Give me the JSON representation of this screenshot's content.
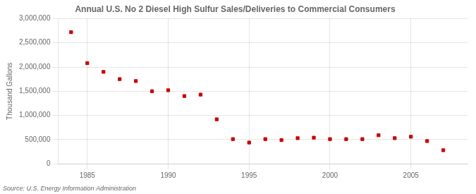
{
  "chart_data": {
    "type": "scatter",
    "title": "Annual U.S. No 2 Diesel High Sulfur Sales/Deliveries to Commercial Consumers",
    "y_label": "Thousand Gallons",
    "annotations": [
      "Source: U.S. Energy Information Administration"
    ],
    "x": [
      1984,
      1985,
      1986,
      1987,
      1988,
      1989,
      1990,
      1991,
      1992,
      1993,
      1994,
      1995,
      1996,
      1997,
      1998,
      1999,
      2000,
      2001,
      2002,
      2003,
      2004,
      2005,
      2006,
      2007
    ],
    "values": [
      2720000,
      2080000,
      1900000,
      1750000,
      1710000,
      1500000,
      1520000,
      1400000,
      1430000,
      920000,
      510000,
      440000,
      510000,
      490000,
      530000,
      540000,
      510000,
      510000,
      510000,
      590000,
      530000,
      560000,
      470000,
      280000
    ],
    "color": "#cc0000",
    "marker": "square",
    "xlim": [
      1983.2,
      2008.5
    ],
    "xticks": [
      1985,
      1990,
      1995,
      2000,
      2005
    ],
    "ylim": [
      0,
      3000000
    ],
    "yticks": [
      0,
      {
        "value": 500000,
        "label": "500,000"
      },
      {
        "value": 1000000,
        "label": "1,000,000"
      },
      {
        "value": 1500000,
        "label": "1,500,000"
      },
      {
        "value": 2000000,
        "label": "2,000,000"
      },
      {
        "value": 2500000,
        "label": "2,500,000"
      },
      {
        "value": 3000000,
        "label": "3,000,000"
      }
    ],
    "grid": true
  }
}
